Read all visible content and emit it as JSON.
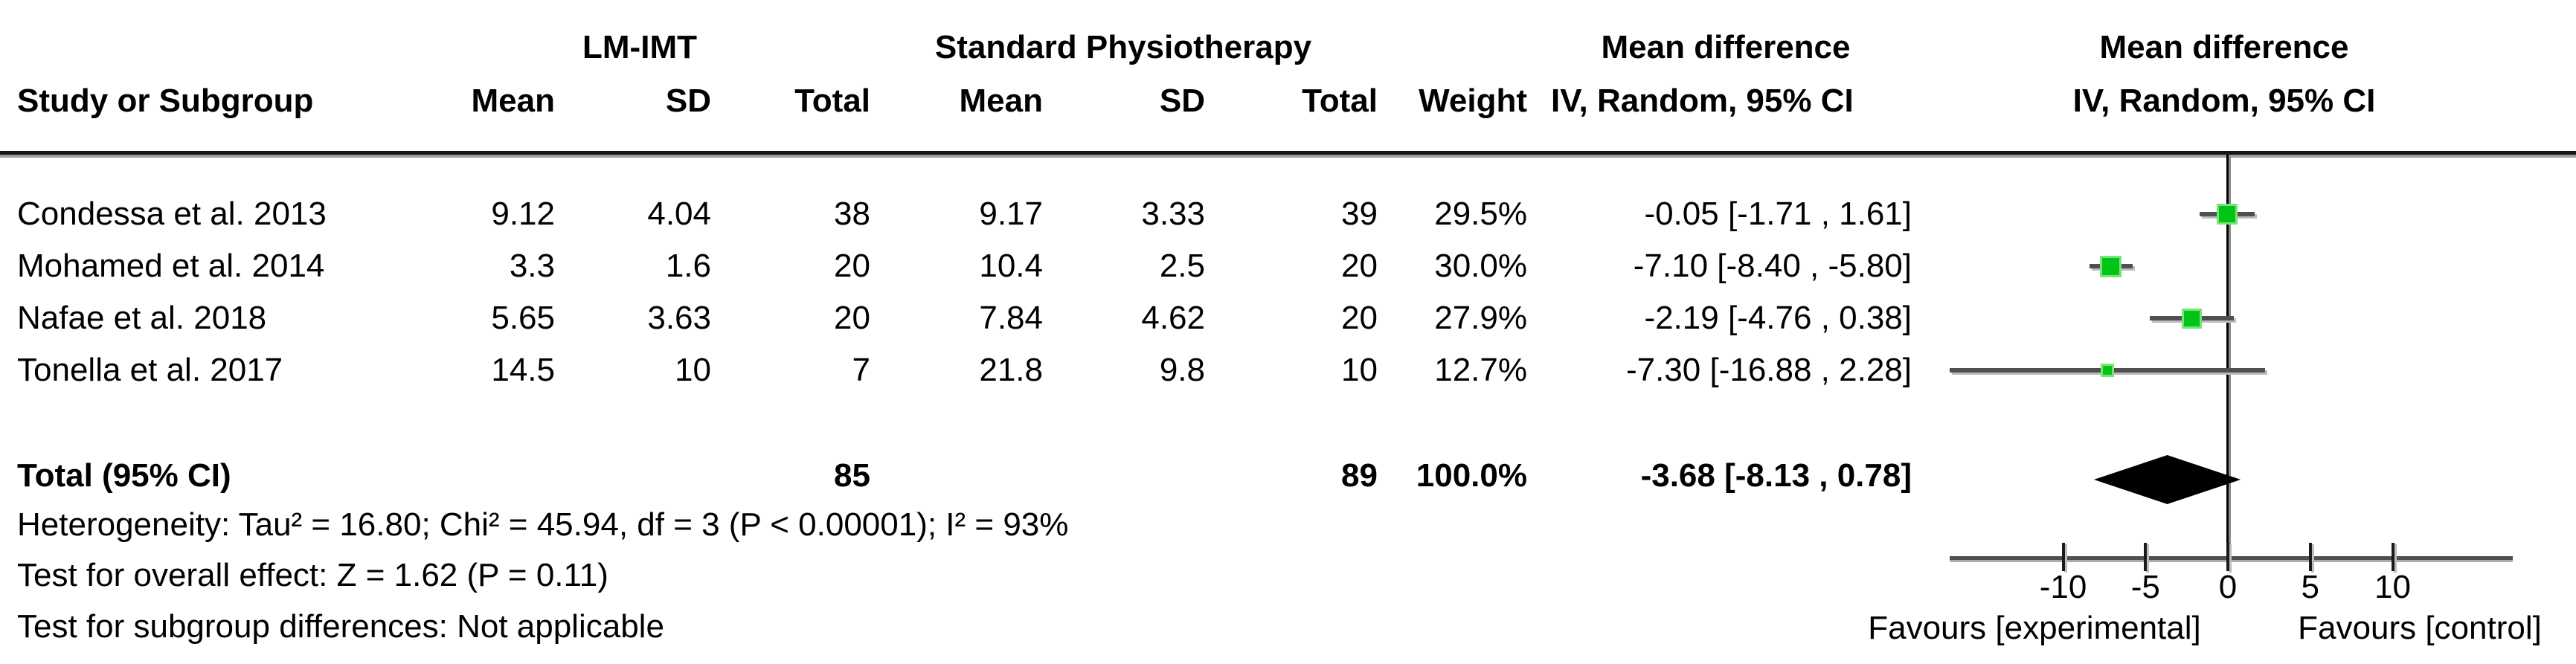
{
  "chart_data": {
    "type": "forest",
    "group1_label": "LM-IMT",
    "group2_label": "Standard Physiotherapy",
    "effect_header_line1": "Mean difference",
    "effect_header_line2": "IV, Random, 95% CI",
    "header": {
      "study": "Study or Subgroup",
      "mean": "Mean",
      "sd": "SD",
      "total": "Total",
      "weight": "Weight"
    },
    "studies": [
      {
        "name": "Condessa et al. 2013",
        "mean1": "9.12",
        "sd1": "4.04",
        "total1": "38",
        "mean2": "9.17",
        "sd2": "3.33",
        "total2": "39",
        "weight": "29.5%",
        "weight_pct": 29.5,
        "effect": -0.05,
        "ci_low": -1.71,
        "ci_high": 1.61,
        "ci_text": "-0.05 [-1.71 , 1.61]"
      },
      {
        "name": "Mohamed et al. 2014",
        "mean1": "3.3",
        "sd1": "1.6",
        "total1": "20",
        "mean2": "10.4",
        "sd2": "2.5",
        "total2": "20",
        "weight": "30.0%",
        "weight_pct": 30.0,
        "effect": -7.1,
        "ci_low": -8.4,
        "ci_high": -5.8,
        "ci_text": "-7.10 [-8.40 , -5.80]"
      },
      {
        "name": "Nafae et al. 2018",
        "mean1": "5.65",
        "sd1": "3.63",
        "total1": "20",
        "mean2": "7.84",
        "sd2": "4.62",
        "total2": "20",
        "weight": "27.9%",
        "weight_pct": 27.9,
        "effect": -2.19,
        "ci_low": -4.76,
        "ci_high": 0.38,
        "ci_text": "-2.19 [-4.76 , 0.38]"
      },
      {
        "name": "Tonella et al. 2017",
        "mean1": "14.5",
        "sd1": "10",
        "total1": "7",
        "mean2": "21.8",
        "sd2": "9.8",
        "total2": "10",
        "weight": "12.7%",
        "weight_pct": 12.7,
        "effect": -7.3,
        "ci_low": -16.88,
        "ci_high": 2.28,
        "ci_text": "-7.30 [-16.88 , 2.28]"
      }
    ],
    "total": {
      "label": "Total (95% CI)",
      "total1": "85",
      "total2": "89",
      "weight": "100.0%",
      "effect": -3.68,
      "ci_low": -8.13,
      "ci_high": 0.78,
      "ci_text": "-3.68 [-8.13 , 0.78]"
    },
    "heterogeneity": "Heterogeneity: Tau² = 16.80; Chi² = 45.94, df = 3 (P < 0.00001); I² = 93%",
    "overall_effect": "Test for overall effect: Z = 1.62 (P = 0.11)",
    "subgroup_differences": "Test for subgroup differences: Not applicable",
    "axis": {
      "ticks": [
        -10,
        -5,
        0,
        5,
        10
      ],
      "tick_labels": [
        "-10",
        "-5",
        "0",
        "5",
        "10"
      ]
    },
    "favours_left": "Favours [experimental]",
    "favours_right": "Favours [control]",
    "colors": {
      "marker_green": "#00c517",
      "marker_edge": "#79e379",
      "ci_line": "#4f4f4f",
      "diamond": "#000000",
      "zero_line": "#000000"
    }
  }
}
